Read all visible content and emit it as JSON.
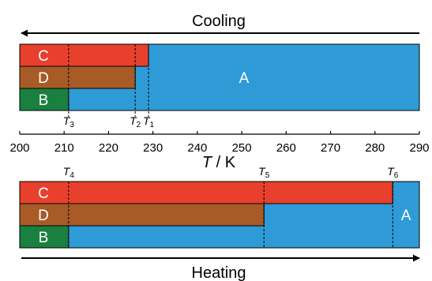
{
  "axis": {
    "label_italic": "T",
    "label_rest": " / K",
    "ticks": [
      200,
      210,
      220,
      230,
      240,
      250,
      260,
      270,
      280,
      290
    ],
    "range": [
      200,
      290
    ]
  },
  "colors": {
    "A": "#2e9bd6",
    "B": "#1a8040",
    "C": "#e8402d",
    "D": "#a85b27"
  },
  "cooling": {
    "title": "Cooling",
    "arrow_direction": "left",
    "phases": [
      {
        "label": "C",
        "row": "top",
        "start": 200,
        "end": 229
      },
      {
        "label": "D",
        "row": "middle",
        "start": 200,
        "end": 226
      },
      {
        "label": "B",
        "row": "bottom",
        "start": 200,
        "end": 211
      },
      {
        "label": "A",
        "region": "remainder",
        "start": 211,
        "end": 290
      }
    ],
    "transitions": [
      {
        "symbol": "T",
        "sub": "1",
        "value": 229
      },
      {
        "symbol": "T",
        "sub": "2",
        "value": 226
      },
      {
        "symbol": "T",
        "sub": "3",
        "value": 211
      }
    ]
  },
  "heating": {
    "title": "Heating",
    "arrow_direction": "right",
    "phases": [
      {
        "label": "C",
        "row": "top",
        "start": 200,
        "end": 284
      },
      {
        "label": "D",
        "row": "middle",
        "start": 200,
        "end": 255
      },
      {
        "label": "B",
        "row": "bottom",
        "start": 200,
        "end": 211
      },
      {
        "label": "A",
        "region": "remainder",
        "start": 284,
        "end": 290
      }
    ],
    "transitions": [
      {
        "symbol": "T",
        "sub": "4",
        "value": 211
      },
      {
        "symbol": "T",
        "sub": "5",
        "value": 255
      },
      {
        "symbol": "T",
        "sub": "6",
        "value": 284
      }
    ]
  }
}
